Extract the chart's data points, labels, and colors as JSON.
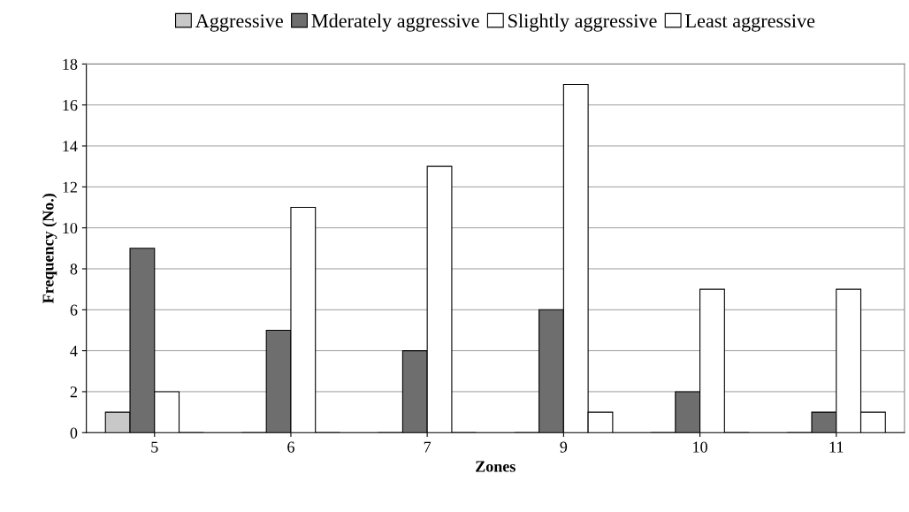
{
  "chart_data": {
    "type": "bar",
    "xlabel": "Zones",
    "ylabel": "Frequency (No.)",
    "categories": [
      "5",
      "6",
      "7",
      "9",
      "10",
      "11"
    ],
    "series": [
      {
        "name": "Aggressive",
        "color": "#c8c8c8",
        "values": [
          1,
          0,
          0,
          0,
          0,
          0
        ]
      },
      {
        "name": "Mderately aggressive",
        "color": "#6e6e6e",
        "values": [
          9,
          5,
          4,
          6,
          2,
          1
        ]
      },
      {
        "name": "Slightly aggressive",
        "color": "#ffffff",
        "values": [
          2,
          11,
          13,
          17,
          7,
          7
        ]
      },
      {
        "name": "Least aggressive",
        "color": "#ffffff",
        "values": [
          0,
          0,
          0,
          1,
          0,
          1
        ]
      }
    ],
    "ylim": [
      0,
      18
    ],
    "yticks": [
      0,
      2,
      4,
      6,
      8,
      10,
      12,
      14,
      16,
      18
    ],
    "grid": "y",
    "legend": "top"
  }
}
